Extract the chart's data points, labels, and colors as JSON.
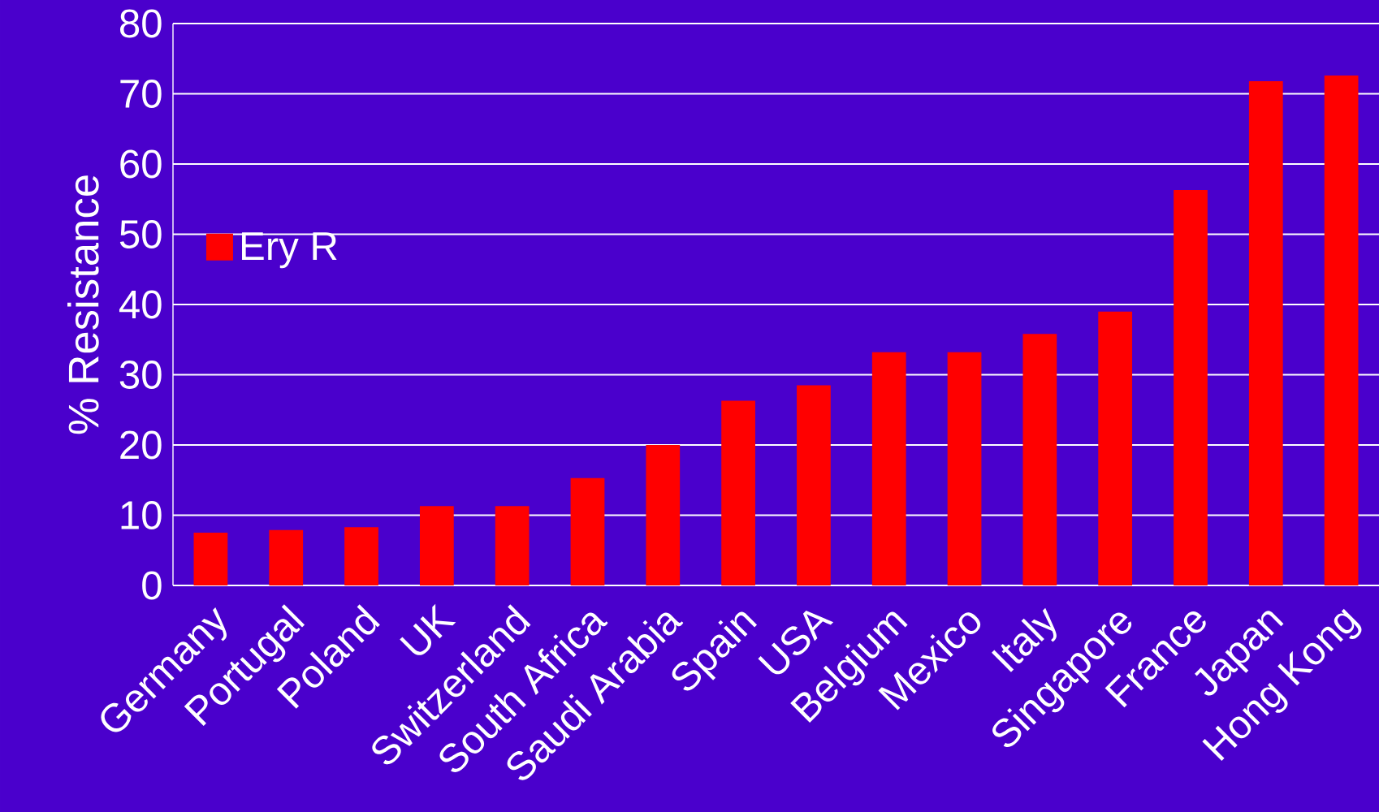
{
  "chart_data": {
    "type": "bar",
    "ylabel": "% Resistance",
    "categories": [
      "Germany",
      "Portugal",
      "Poland",
      "UK",
      "Switzerland",
      "South Africa",
      "Saudi Arabia",
      "Spain",
      "USA",
      "Belgium",
      "Mexico",
      "Italy",
      "Singapore",
      "France",
      "Japan",
      "Hong Kong"
    ],
    "series": [
      {
        "name": "Ery R",
        "color": "#ff0000",
        "values": [
          7.5,
          7.9,
          8.3,
          11.3,
          11.3,
          15.3,
          20,
          26.3,
          28.5,
          33.2,
          33.2,
          35.8,
          39,
          56.3,
          71.8,
          72.6
        ]
      }
    ],
    "ylim": [
      0,
      80
    ],
    "yticks": [
      0,
      10,
      20,
      30,
      40,
      50,
      60,
      70,
      80
    ],
    "grid": "y",
    "legend": "left"
  }
}
